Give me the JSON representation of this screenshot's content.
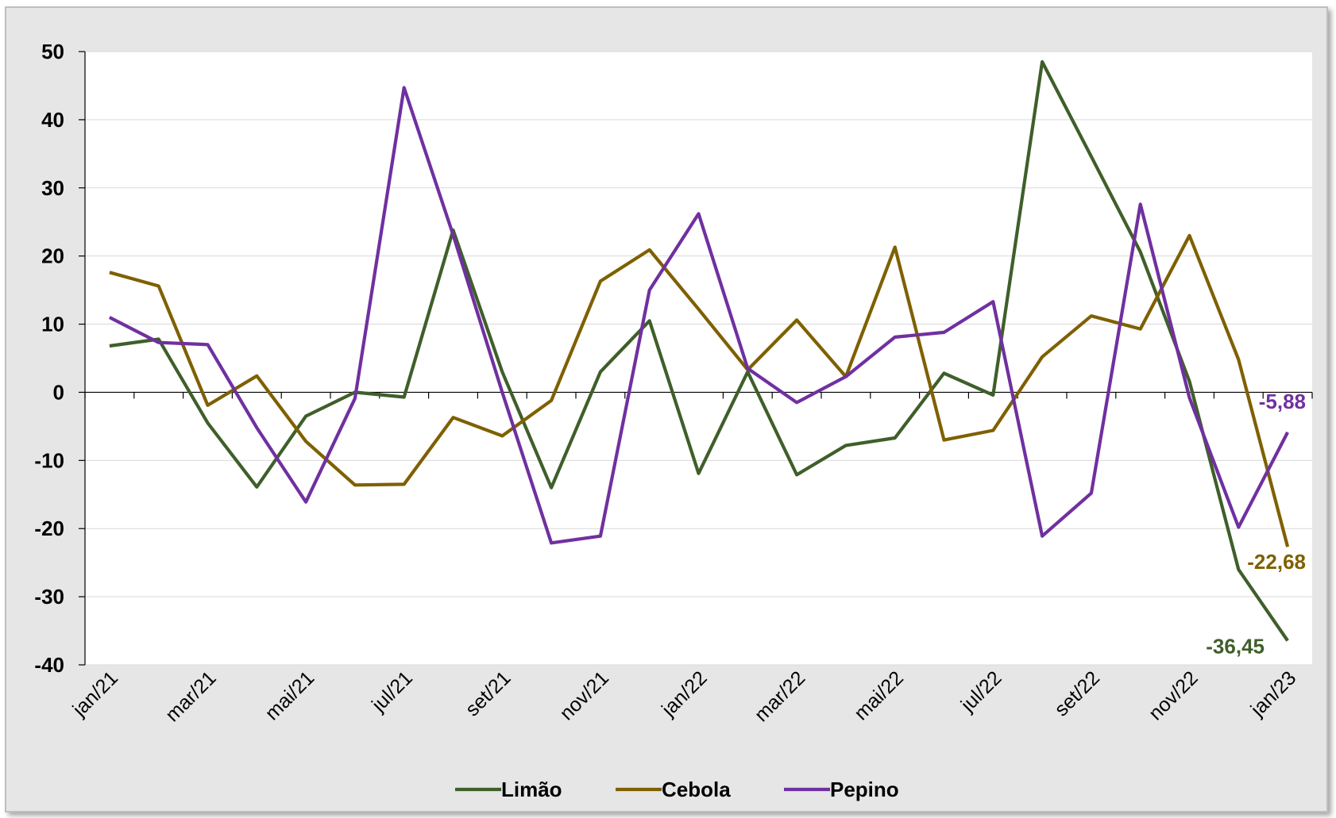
{
  "chart_data": {
    "type": "line",
    "title": "",
    "xlabel": "",
    "ylabel": "",
    "ylim": [
      -40,
      50
    ],
    "yticks": [
      50,
      40,
      30,
      20,
      10,
      0,
      -10,
      -20,
      -30,
      -40
    ],
    "ytick_labels": [
      "50",
      "40",
      "30",
      "20",
      "10",
      "0",
      "-10",
      "-20",
      "-30",
      "-40"
    ],
    "grid": true,
    "legend_position": "bottom",
    "x": [
      "jan/21",
      "fev/21",
      "mar/21",
      "abr/21",
      "mai/21",
      "jun/21",
      "jul/21",
      "ago/21",
      "set/21",
      "out/21",
      "nov/21",
      "dez/21",
      "jan/22",
      "fev/22",
      "mar/22",
      "abr/22",
      "mai/22",
      "jun/22",
      "jul/22",
      "ago/22",
      "set/22",
      "out/22",
      "nov/22",
      "dez/22",
      "jan/23"
    ],
    "xtick_labels": [
      "jan/21",
      "mar/21",
      "mai/21",
      "jul/21",
      "set/21",
      "nov/21",
      "jan/22",
      "mar/22",
      "mai/22",
      "jul/22",
      "set/22",
      "nov/22",
      "jan/23"
    ],
    "series": [
      {
        "name": "Limão",
        "color": "#3f5f2a",
        "values": [
          6.8,
          7.8,
          -4.5,
          -13.9,
          -3.5,
          0.0,
          -0.7,
          23.8,
          3.0,
          -14.0,
          3.0,
          10.5,
          -11.9,
          3.0,
          -12.1,
          -7.8,
          -6.7,
          2.8,
          -0.4,
          48.5,
          34.6,
          20.6,
          1.6,
          -26.0,
          -36.45
        ],
        "end_label": "-36,45"
      },
      {
        "name": "Cebola",
        "color": "#7f6000",
        "values": [
          17.6,
          15.6,
          -1.9,
          2.4,
          -7.2,
          -13.6,
          -13.5,
          -3.7,
          -6.4,
          -1.2,
          16.3,
          20.9,
          12.2,
          3.3,
          10.6,
          2.3,
          21.3,
          -7.0,
          -5.6,
          5.2,
          11.2,
          9.3,
          23.0,
          4.8,
          -22.68
        ],
        "end_label": "-22,68"
      },
      {
        "name": "Pepino",
        "color": "#7030a0",
        "values": [
          11.0,
          7.3,
          7.0,
          -5.2,
          -16.1,
          -0.9,
          44.7,
          23.1,
          0.0,
          -22.1,
          -21.1,
          15.0,
          26.2,
          3.5,
          -1.5,
          2.3,
          8.1,
          8.8,
          13.3,
          -21.1,
          -14.8,
          27.6,
          -0.8,
          -19.8,
          -5.88
        ],
        "end_label": "-5,88"
      }
    ]
  }
}
